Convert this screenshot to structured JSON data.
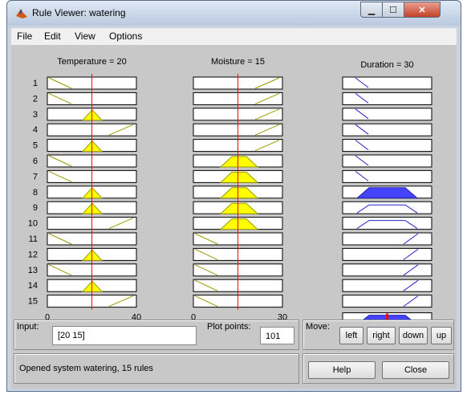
{
  "window": {
    "title": "Rule Viewer: watering"
  },
  "menu": [
    "File",
    "Edit",
    "View",
    "Options"
  ],
  "columns": [
    {
      "header": "Temperature = 20",
      "axis_min": "0",
      "axis_max": "40",
      "range": [
        0,
        40
      ],
      "input": 20
    },
    {
      "header": "Moisture = 15",
      "axis_min": "0",
      "axis_max": "30",
      "range": [
        0,
        30
      ],
      "input": 15
    },
    {
      "header": "Duration = 30",
      "axis_min": "0",
      "axis_max": "60",
      "range": [
        0,
        60
      ],
      "output": 30
    }
  ],
  "rules": [
    {
      "num": "1",
      "temp": "low",
      "moist": "high",
      "dur": "short",
      "fire": 0
    },
    {
      "num": "2",
      "temp": "low",
      "moist": "high",
      "dur": "short",
      "fire": 0
    },
    {
      "num": "3",
      "temp": "med",
      "moist": "high",
      "dur": "short",
      "fire": 0
    },
    {
      "num": "4",
      "temp": "high",
      "moist": "high",
      "dur": "short",
      "fire": 0
    },
    {
      "num": "5",
      "temp": "med",
      "moist": "high",
      "dur": "short",
      "fire": 0
    },
    {
      "num": "6",
      "temp": "low",
      "moist": "med",
      "dur": "short",
      "fire": 0
    },
    {
      "num": "7",
      "temp": "low",
      "moist": "med",
      "dur": "short",
      "fire": 0
    },
    {
      "num": "8",
      "temp": "med",
      "moist": "med",
      "dur": "medium",
      "fire": 1
    },
    {
      "num": "9",
      "temp": "med",
      "moist": "med",
      "dur": "medium",
      "fire": 0
    },
    {
      "num": "10",
      "temp": "high",
      "moist": "med",
      "dur": "medium",
      "fire": 0
    },
    {
      "num": "11",
      "temp": "low",
      "moist": "low",
      "dur": "long",
      "fire": 0
    },
    {
      "num": "12",
      "temp": "med",
      "moist": "low",
      "dur": "long",
      "fire": 0
    },
    {
      "num": "13",
      "temp": "low",
      "moist": "low",
      "dur": "long",
      "fire": 0
    },
    {
      "num": "14",
      "temp": "med",
      "moist": "low",
      "dur": "long",
      "fire": 0
    },
    {
      "num": "15",
      "temp": "high",
      "moist": "low",
      "dur": "long",
      "fire": 0
    }
  ],
  "input_panel": {
    "label": "Input:",
    "value": "[20 15]"
  },
  "plot_points": {
    "label": "Plot points:",
    "value": "101"
  },
  "move": {
    "label": "Move:",
    "buttons": [
      "left",
      "right",
      "down",
      "up"
    ]
  },
  "status": "Opened system watering, 15 rules",
  "buttons": {
    "help": "Help",
    "close": "Close"
  },
  "colors": {
    "input_fill": "#ffff00",
    "output_fill": "#4444ff",
    "marker": "#ff0000"
  }
}
